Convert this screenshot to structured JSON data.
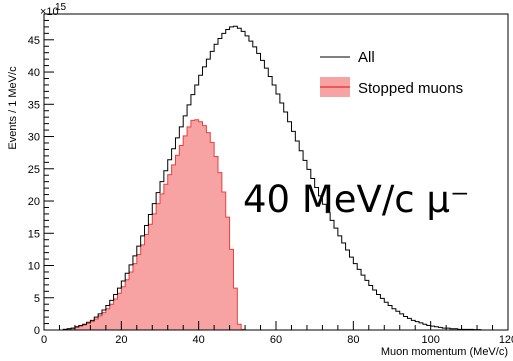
{
  "chart_data": {
    "type": "area",
    "xlabel": "Muon momentum (MeV/c)",
    "ylabel": "Events / 1 MeV/c",
    "y_multiplier_label": "×10",
    "y_multiplier_exp": "15",
    "xlim": [
      0,
      120
    ],
    "ylim": [
      0,
      49
    ],
    "xticks": [
      0,
      20,
      40,
      60,
      80,
      100,
      120
    ],
    "yticks": [
      0,
      5,
      10,
      15,
      20,
      25,
      30,
      35,
      40,
      45
    ],
    "bin_width": 1,
    "grid": false,
    "legend_position": "top-right",
    "annotation": "40 MeV/c μ⁻",
    "colors": {
      "all": "#000000",
      "stopped_fill": "#f7a3a3",
      "stopped_line": "#e8403c"
    },
    "series": [
      {
        "name": "All",
        "style": "step-line",
        "x_start": 0,
        "values": [
          0,
          0,
          0,
          0,
          0,
          0.1,
          0.2,
          0.3,
          0.5,
          0.7,
          0.9,
          1.2,
          1.5,
          2,
          2.5,
          3.1,
          3.8,
          4.6,
          5.5,
          6.5,
          7.6,
          8.8,
          10.1,
          11.5,
          13,
          14.6,
          16.2,
          17.9,
          19.6,
          21.3,
          23,
          24.7,
          26.4,
          28.1,
          29.8,
          31.5,
          33.2,
          34.9,
          36.5,
          38,
          39.5,
          40.8,
          42,
          43.2,
          44.3,
          45.2,
          46,
          46.6,
          47,
          47.1,
          46.8,
          46.3,
          45.6,
          44.8,
          43.9,
          42.9,
          41.8,
          40.6,
          39.3,
          38,
          36.6,
          35.2,
          33.8,
          32.3,
          30.8,
          29.3,
          27.8,
          26.3,
          24.9,
          23.5,
          22.1,
          20.8,
          19.5,
          18.2,
          17,
          15.8,
          14.6,
          13.5,
          12.4,
          11.3,
          10.3,
          9.4,
          8.5,
          7.7,
          6.9,
          6.2,
          5.5,
          4.9,
          4.3,
          3.8,
          3.3,
          2.9,
          2.5,
          2.1,
          1.8,
          1.5,
          1.3,
          1.1,
          0.9,
          0.7,
          0.6,
          0.5,
          0.4,
          0.3,
          0.3,
          0.2,
          0.2,
          0.1,
          0.1,
          0.1,
          0.1,
          0.05,
          0.05,
          0,
          0,
          0,
          0,
          0,
          0,
          0
        ]
      },
      {
        "name": "Stopped muons",
        "style": "filled-step",
        "x_start": 0,
        "values": [
          0,
          0,
          0,
          0,
          0,
          0.1,
          0.2,
          0.3,
          0.4,
          0.6,
          0.8,
          1,
          1.3,
          1.7,
          2.2,
          2.7,
          3.3,
          4,
          4.8,
          5.7,
          6.7,
          7.8,
          9,
          10.3,
          11.7,
          13.2,
          14.8,
          16.4,
          18,
          19.6,
          21.1,
          22.6,
          24.1,
          25.6,
          27.1,
          28.6,
          30.1,
          31.5,
          32.5,
          32.6,
          32.3,
          31.7,
          30.6,
          29.1,
          26.9,
          24.4,
          21.4,
          17.5,
          12.5,
          6.5,
          0.9,
          0.1,
          0,
          0,
          0,
          0,
          0,
          0,
          0,
          0,
          0,
          0,
          0,
          0,
          0,
          0,
          0,
          0,
          0,
          0,
          0,
          0,
          0,
          0,
          0,
          0,
          0,
          0,
          0,
          0,
          0,
          0,
          0,
          0,
          0,
          0,
          0,
          0,
          0,
          0,
          0,
          0,
          0,
          0,
          0,
          0,
          0,
          0,
          0,
          0,
          0,
          0,
          0,
          0,
          0,
          0,
          0,
          0,
          0,
          0,
          0,
          0,
          0,
          0,
          0,
          0,
          0,
          0,
          0,
          0
        ]
      }
    ]
  }
}
